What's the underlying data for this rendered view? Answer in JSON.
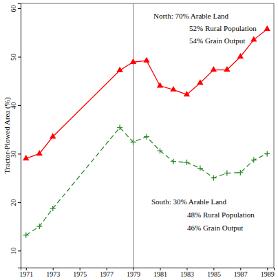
{
  "chart_data": {
    "type": "line",
    "y_label": "Tractor-Plowed Area (%)",
    "x": [
      1971,
      1972,
      1973,
      1978,
      1979,
      1980,
      1981,
      1982,
      1983,
      1984,
      1985,
      1986,
      1987,
      1988,
      1989
    ],
    "series": [
      {
        "color": "#ff0000",
        "marker": "triangle",
        "line_style": "solid",
        "values": [
          29,
          30,
          33.5,
          47.2,
          48.9,
          49.2,
          44,
          43.2,
          42.2,
          44.6,
          47.3,
          47.3,
          50,
          53.5,
          55.7
        ]
      },
      {
        "color": "#2e8b2e",
        "marker": "plus",
        "line_style": "dashed",
        "values": [
          13.2,
          15,
          18.7,
          35.4,
          32.4,
          33.5,
          30.6,
          28.4,
          28.2,
          27,
          25,
          26,
          26.1,
          28.7,
          30
        ]
      }
    ],
    "xlim": [
      1970.6,
      1989.5
    ],
    "xticks": [
      1971,
      1973,
      1975,
      1977,
      1979,
      1981,
      1983,
      1985,
      1987,
      1989
    ],
    "ylim": [
      6.5,
      61
    ],
    "yticks": [
      10,
      20,
      30,
      40,
      50,
      60
    ],
    "vline": 1979,
    "grid": false,
    "annotations": [
      {
        "lines": [
          "North: 70% Arable Land",
          "52% Rural Population",
          "54% Grain Output"
        ]
      },
      {
        "lines": [
          "South: 30% Arable Land",
          "48% Rural Population",
          "46% Grain Output"
        ]
      }
    ]
  }
}
